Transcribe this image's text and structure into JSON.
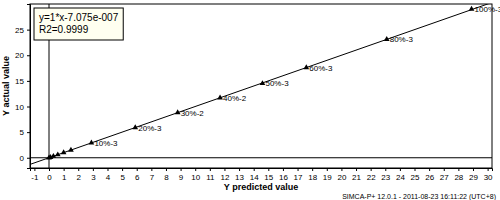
{
  "chart_data": {
    "type": "scatter",
    "x_label": "Y predicted value",
    "y_label": "Y actual value",
    "annotations": [
      "y=1*x-7.075e-007",
      "R2=0.9999"
    ],
    "footer": "SIMCA-P+ 12.0.1 - 2011-08-23 16:11:22 (UTC+8)",
    "fit": {
      "slope": 1,
      "intercept": -7.075e-07
    },
    "x": [
      0,
      0.1,
      0.3,
      0.6,
      1,
      1.5,
      2.9,
      5.9,
      8.8,
      11.7,
      14.6,
      17.6,
      23.1,
      28.9
    ],
    "values": [
      0,
      0.1,
      0.3,
      0.6,
      1,
      1.5,
      2.9,
      5.9,
      8.8,
      11.7,
      14.5,
      17.6,
      23.1,
      29
    ],
    "point_labels": [
      null,
      null,
      null,
      null,
      null,
      null,
      "10%-3",
      "20%-3",
      "30%-2",
      "40%-2",
      "50%-3",
      "60%-3",
      "80%-3",
      "100%-3"
    ],
    "color": "#000000",
    "marker": "triangle",
    "grid": false,
    "xlim": [
      -1.3,
      30.3
    ],
    "xticks": [
      -1,
      0,
      1,
      2,
      3,
      4,
      5,
      6,
      7,
      8,
      9,
      10,
      11,
      12,
      13,
      14,
      15,
      16,
      17,
      18,
      19,
      20,
      21,
      22,
      23,
      24,
      25,
      26,
      27,
      28,
      29,
      30
    ],
    "ylim": [
      -2,
      30
    ],
    "yticks": [
      0,
      5,
      10,
      15,
      20,
      25
    ]
  }
}
